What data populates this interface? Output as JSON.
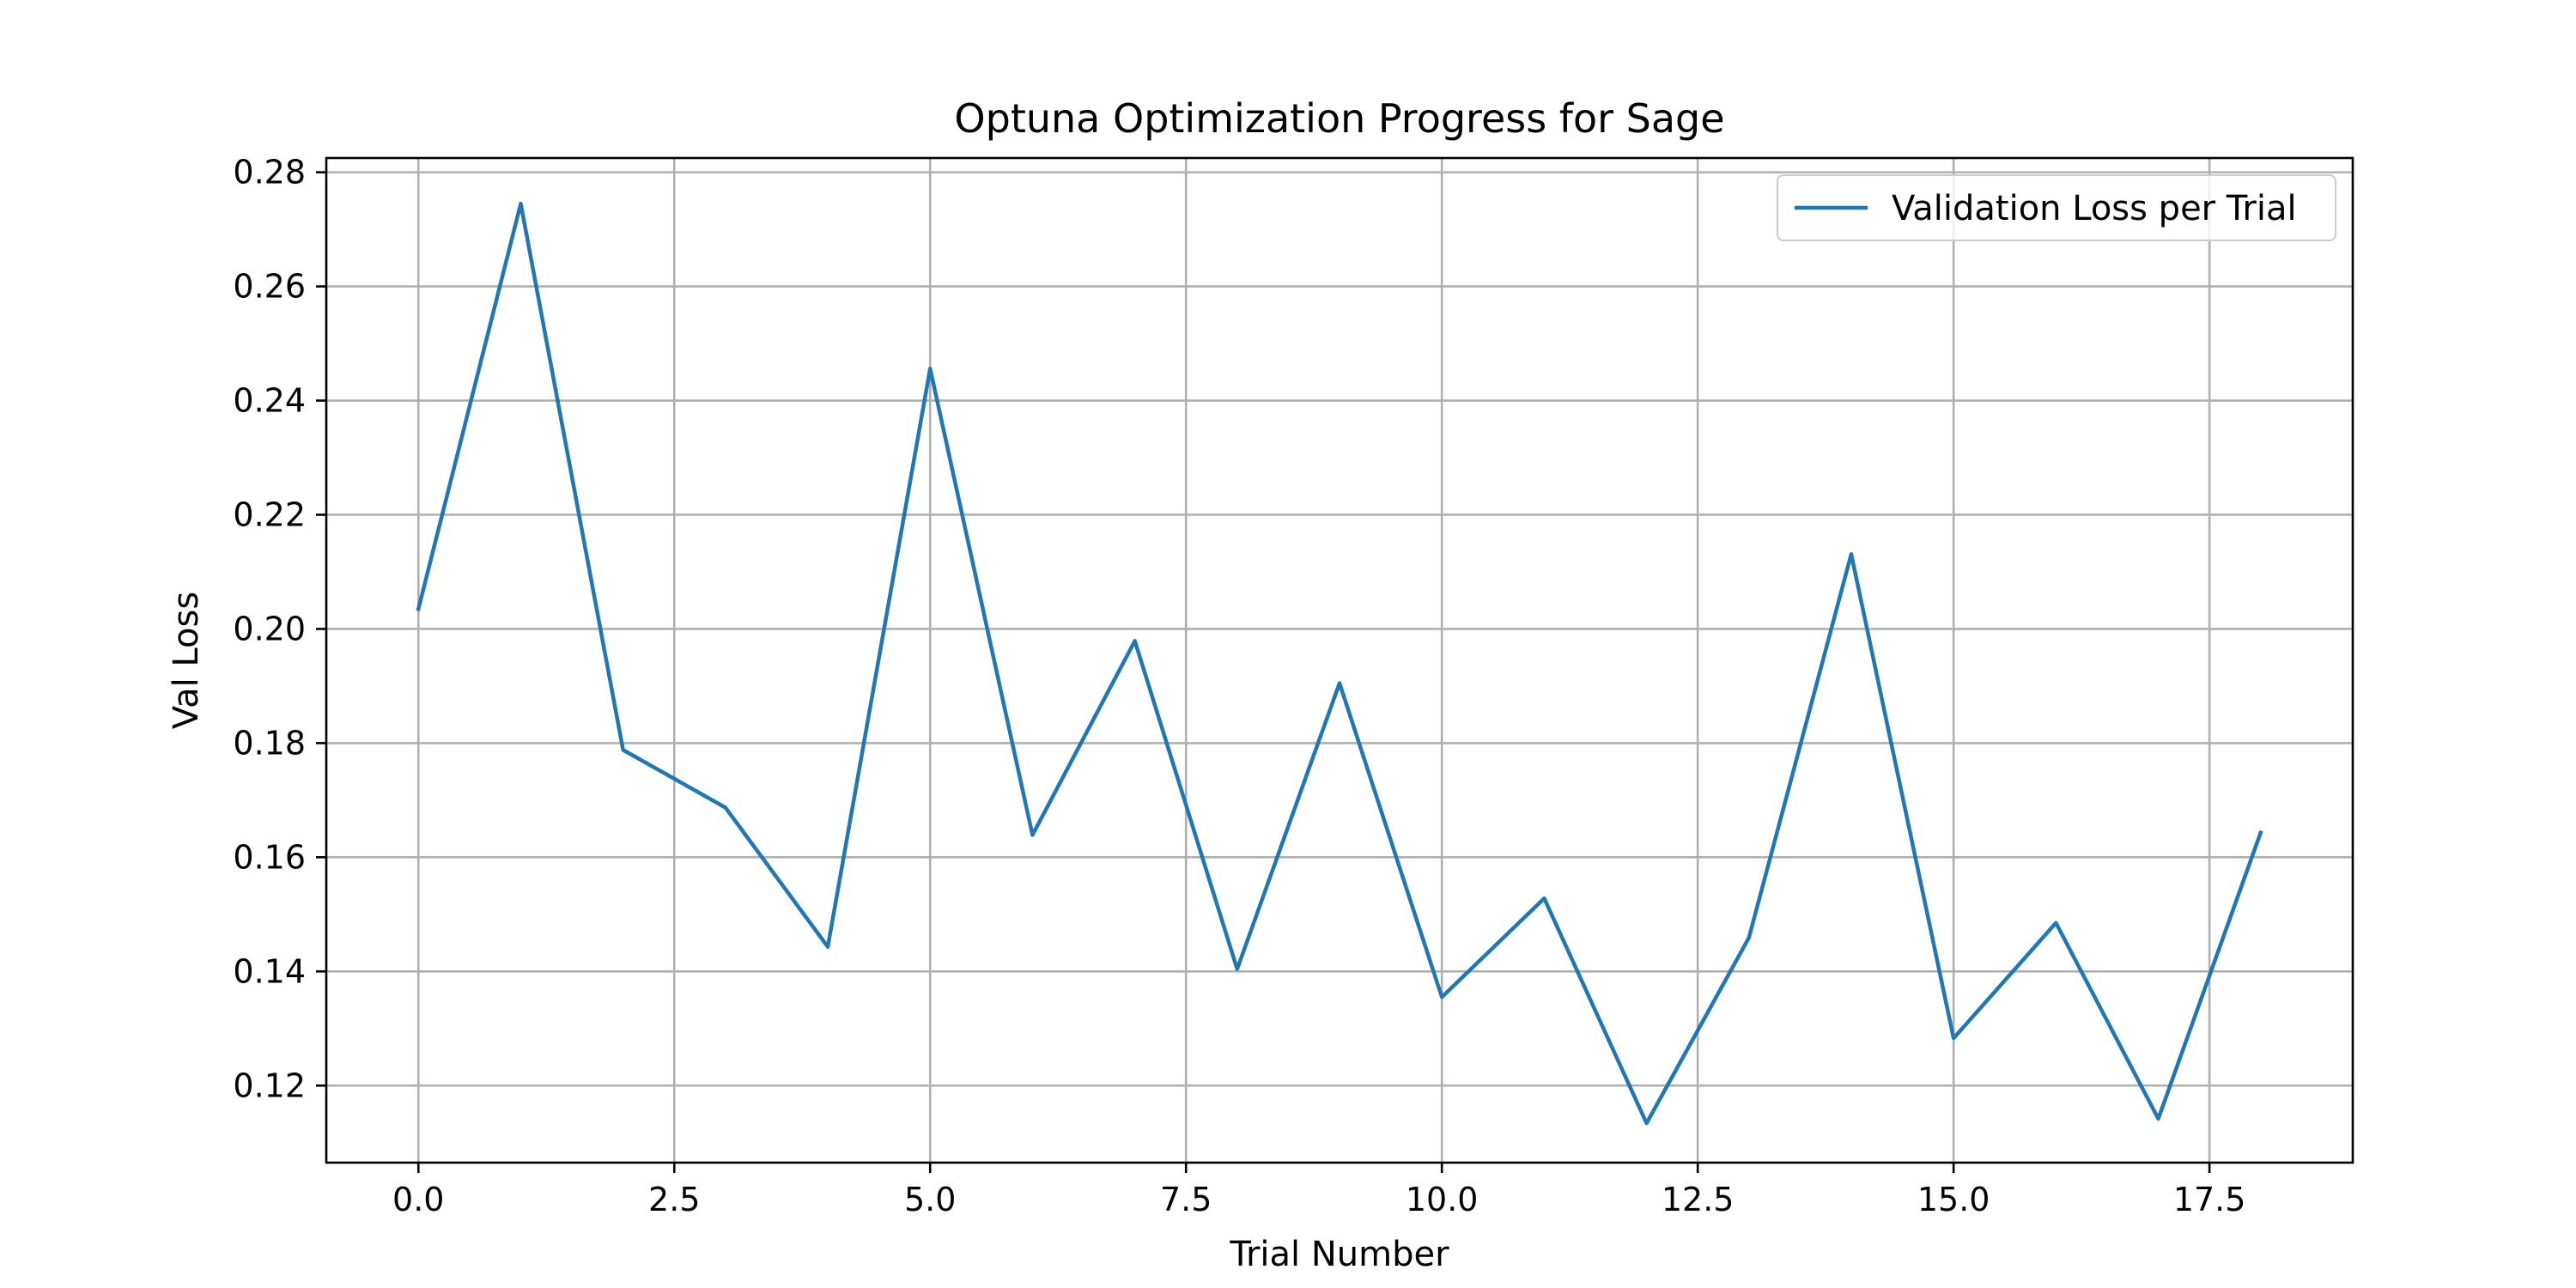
{
  "chart_data": {
    "type": "line",
    "title": "Optuna Optimization Progress for Sage",
    "xlabel": "Trial Number",
    "ylabel": "Val Loss",
    "xlim": [
      -0.9,
      18.9
    ],
    "ylim": [
      0.1065,
      0.2825
    ],
    "xticks": [
      0.0,
      2.5,
      5.0,
      7.5,
      10.0,
      12.5,
      15.0,
      17.5
    ],
    "xtick_labels": [
      "0.0",
      "2.5",
      "5.0",
      "7.5",
      "10.0",
      "12.5",
      "15.0",
      "17.5"
    ],
    "yticks": [
      0.12,
      0.14,
      0.16,
      0.18,
      0.2,
      0.22,
      0.24,
      0.26,
      0.28
    ],
    "ytick_labels": [
      "0.12",
      "0.14",
      "0.16",
      "0.18",
      "0.20",
      "0.22",
      "0.24",
      "0.26",
      "0.28"
    ],
    "grid": true,
    "legend_position": "top-right",
    "series": [
      {
        "name": "Validation Loss per Trial",
        "color": "#1f77b4",
        "x": [
          0,
          1,
          2,
          3,
          4,
          5,
          6,
          7,
          8,
          9,
          10,
          11,
          12,
          13,
          14,
          15,
          16,
          17,
          18
        ],
        "values": [
          0.2035,
          0.2745,
          0.1788,
          0.1687,
          0.1443,
          0.2456,
          0.1639,
          0.1979,
          0.1404,
          0.1905,
          0.1355,
          0.1528,
          0.1134,
          0.1459,
          0.2131,
          0.1283,
          0.1485,
          0.1142,
          0.1643
        ]
      }
    ]
  }
}
